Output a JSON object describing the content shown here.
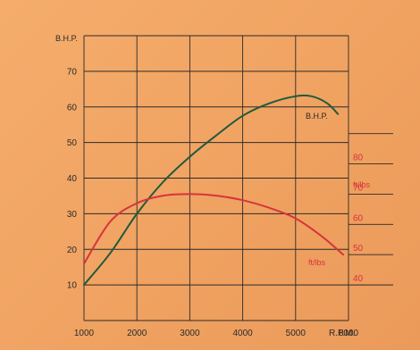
{
  "colors": {
    "background": "#f2a766",
    "grid": "#2b2b2b",
    "bhp_line": "#1f5a3c",
    "torque_line": "#d8333c",
    "text": "#2a2a2a",
    "red_text": "#d8333c"
  },
  "chart_data": {
    "type": "line",
    "title": "",
    "xlabel": "R.P.M.",
    "ylabel": "B.H.P.",
    "y2label": "ft/lbs",
    "xlim": [
      1000,
      6000
    ],
    "ylim": [
      0,
      80
    ],
    "y2lim": [
      25,
      95
    ],
    "x_ticks": [
      "1000",
      "2000",
      "3000",
      "4000",
      "5000",
      "6000"
    ],
    "y_ticks": [
      "10",
      "20",
      "30",
      "40",
      "50",
      "60",
      "70"
    ],
    "y2_ticks": [
      "40",
      "50",
      "60",
      "70",
      "80"
    ],
    "grid": true,
    "series": [
      {
        "name": "B.H.P.",
        "axis": "left",
        "x": [
          1000,
          1500,
          2000,
          2500,
          3000,
          3500,
          4000,
          4500,
          5000,
          5300,
          5600,
          5800
        ],
        "values": [
          10,
          19,
          30,
          39,
          46,
          52,
          57.5,
          61,
          63,
          63,
          61,
          58
        ]
      },
      {
        "name": "ft/lbs",
        "axis": "right",
        "x": [
          1000,
          1500,
          2000,
          2500,
          3000,
          3500,
          4000,
          4500,
          5000,
          5500,
          5900
        ],
        "values": [
          47,
          61,
          67,
          69.5,
          70,
          69.5,
          68,
          65.5,
          62,
          56,
          50
        ]
      }
    ]
  }
}
